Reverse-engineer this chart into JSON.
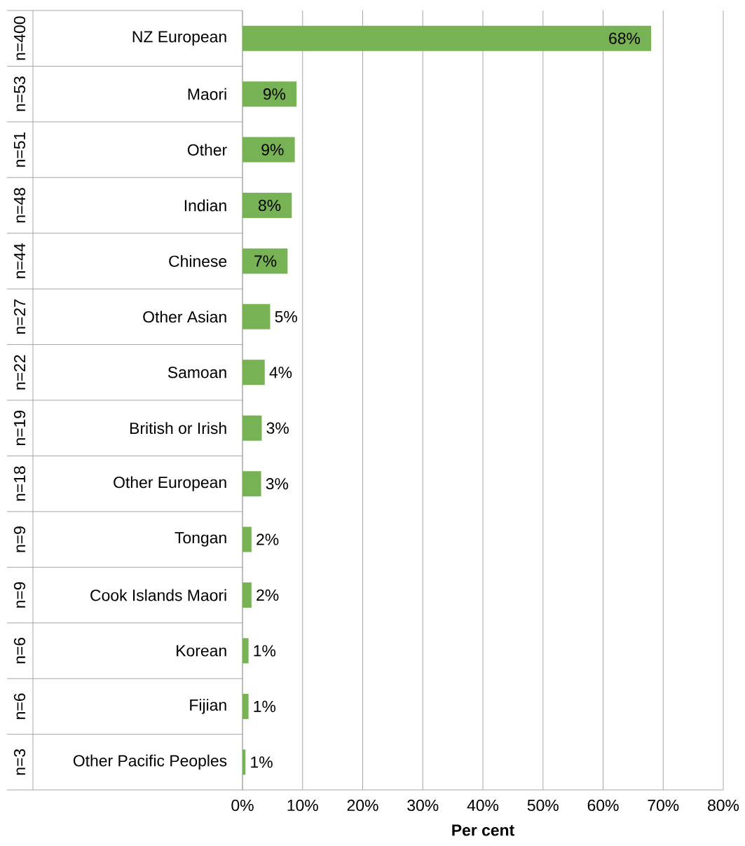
{
  "chart_data": {
    "type": "bar",
    "orientation": "horizontal",
    "xlabel": "Per cent",
    "categories": [
      "NZ European",
      "Maori",
      "Other",
      "Indian",
      "Chinese",
      "Other Asian",
      "Samoan",
      "British or Irish",
      "Other European",
      "Tongan",
      "Cook Islands Maori",
      "Korean",
      "Fijian",
      "Other Pacific Peoples"
    ],
    "values": [
      68.0,
      9.0,
      8.7,
      8.2,
      7.5,
      4.6,
      3.7,
      3.2,
      3.1,
      1.5,
      1.5,
      1.0,
      1.0,
      0.5
    ],
    "value_labels": [
      "68%",
      "9%",
      "9%",
      "8%",
      "7%",
      "5%",
      "4%",
      "3%",
      "3%",
      "2%",
      "2%",
      "1%",
      "1%",
      "1%"
    ],
    "color": "#77b255",
    "xlim": [
      0,
      80
    ],
    "xticks": [
      {
        "value": 0,
        "label": "0%"
      },
      {
        "value": 10,
        "label": "10%"
      },
      {
        "value": 20,
        "label": "20%"
      },
      {
        "value": 30,
        "label": "30%"
      },
      {
        "value": 40,
        "label": "40%"
      },
      {
        "value": 50,
        "label": "50%"
      },
      {
        "value": 60,
        "label": "60%"
      },
      {
        "value": 70,
        "label": "70%"
      },
      {
        "value": 80,
        "label": "80%"
      }
    ],
    "grid": "x",
    "annotations": [
      "n=400",
      "n=53",
      "n=51",
      "n=48",
      "n=44",
      "n=27",
      "n=22",
      "n=19",
      "n=18",
      "n=9",
      "n=9",
      "n=6",
      "n=6",
      "n=3"
    ]
  }
}
